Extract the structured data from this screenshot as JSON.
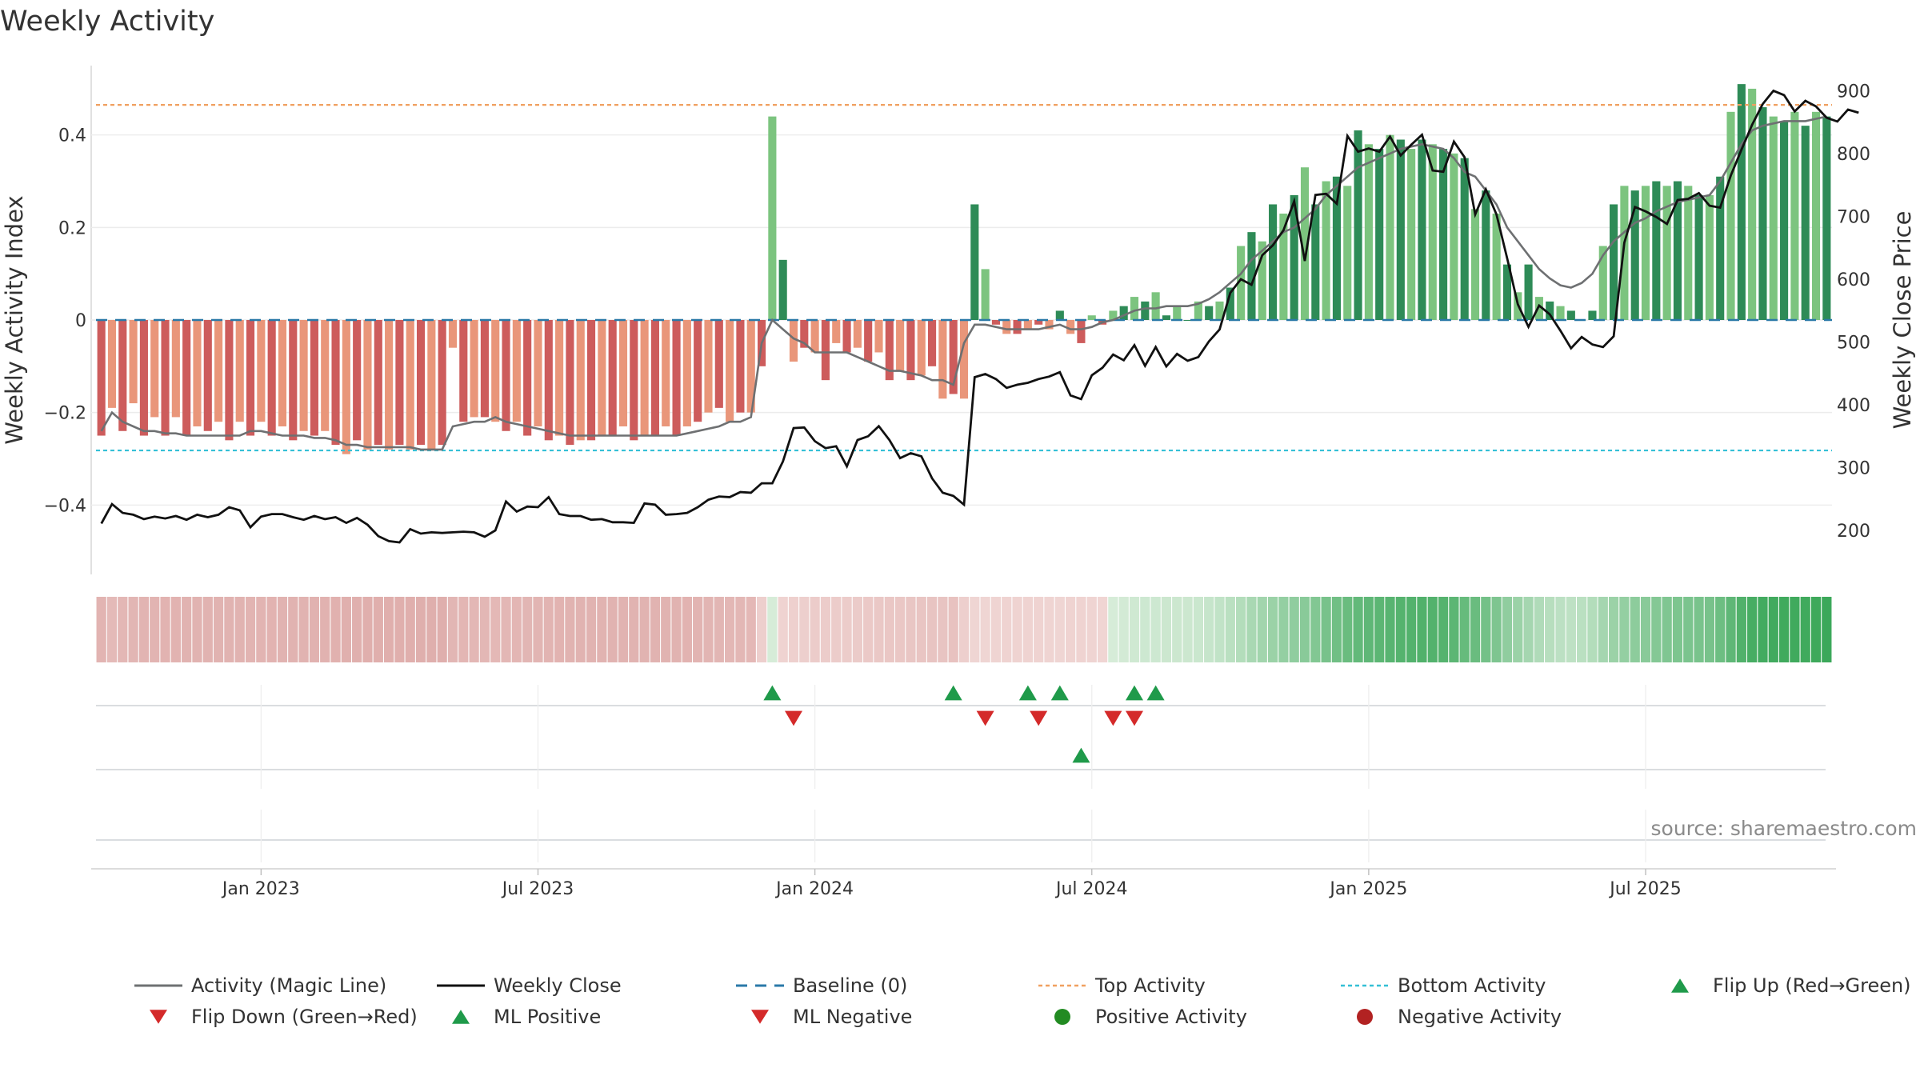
{
  "chart_data": {
    "type": "bar",
    "title": "Weekly Activity",
    "ylabel_left": "Weekly Activity Index",
    "ylabel_right": "Weekly Close Price",
    "source": "source: sharemaestro.com",
    "y_left": {
      "min": -0.55,
      "max": 0.55,
      "ticks": [
        0.4,
        0.2,
        0,
        -0.2,
        -0.4
      ],
      "tick_labels": [
        "0.4",
        "0.2",
        "0",
        "−0.2",
        "−0.4"
      ]
    },
    "y_right": {
      "min": 130,
      "max": 940,
      "ticks": [
        900,
        800,
        700,
        600,
        500,
        400,
        300,
        200
      ],
      "tick_labels": [
        "900",
        "800",
        "700",
        "600",
        "500",
        "400",
        "300",
        "200"
      ]
    },
    "x_ticks": [
      {
        "label": "Jan 2023",
        "week": 15
      },
      {
        "label": "Jul 2023",
        "week": 41
      },
      {
        "label": "Jan 2024",
        "week": 67
      },
      {
        "label": "Jul 2024",
        "week": 93
      },
      {
        "label": "Jan 2025",
        "week": 119
      },
      {
        "label": "Jul 2025",
        "week": 145
      }
    ],
    "top_activity": 0.465,
    "bottom_activity": -0.282,
    "activity": [
      -0.25,
      -0.19,
      -0.24,
      -0.18,
      -0.25,
      -0.21,
      -0.25,
      -0.21,
      -0.25,
      -0.23,
      -0.24,
      -0.22,
      -0.26,
      -0.22,
      -0.25,
      -0.22,
      -0.25,
      -0.23,
      -0.26,
      -0.24,
      -0.25,
      -0.24,
      -0.27,
      -0.29,
      -0.26,
      -0.28,
      -0.27,
      -0.28,
      -0.27,
      -0.28,
      -0.27,
      -0.28,
      -0.27,
      -0.06,
      -0.22,
      -0.21,
      -0.21,
      -0.22,
      -0.24,
      -0.22,
      -0.25,
      -0.23,
      -0.26,
      -0.25,
      -0.27,
      -0.26,
      -0.26,
      -0.25,
      -0.25,
      -0.23,
      -0.26,
      -0.25,
      -0.25,
      -0.23,
      -0.25,
      -0.23,
      -0.22,
      -0.2,
      -0.19,
      -0.22,
      -0.2,
      -0.2,
      -0.1,
      0.44,
      0.13,
      -0.09,
      -0.06,
      -0.07,
      -0.13,
      -0.05,
      -0.07,
      -0.06,
      -0.09,
      -0.07,
      -0.13,
      -0.11,
      -0.13,
      -0.12,
      -0.1,
      -0.17,
      -0.16,
      -0.17,
      0.25,
      0.11,
      -0.01,
      -0.03,
      -0.03,
      -0.02,
      -0.01,
      -0.02,
      0.02,
      -0.03,
      -0.05,
      0.01,
      -0.01,
      0.02,
      0.03,
      0.05,
      0.04,
      0.06,
      0.01,
      0.03,
      0.0,
      0.04,
      0.03,
      0.04,
      0.07,
      0.16,
      0.19,
      0.17,
      0.25,
      0.23,
      0.27,
      0.33,
      0.25,
      0.3,
      0.31,
      0.29,
      0.41,
      0.38,
      0.37,
      0.4,
      0.39,
      0.37,
      0.39,
      0.38,
      0.37,
      0.36,
      0.35,
      0.24,
      0.28,
      0.23,
      0.12,
      0.06,
      0.12,
      0.05,
      0.04,
      0.03,
      0.02,
      0.0,
      0.02,
      0.16,
      0.25,
      0.29,
      0.28,
      0.29,
      0.3,
      0.29,
      0.3,
      0.29,
      0.27,
      0.27,
      0.31,
      0.45,
      0.51,
      0.5,
      0.46,
      0.44,
      0.43,
      0.45,
      0.42,
      0.45,
      0.44
    ],
    "magic_line": [
      -0.24,
      -0.2,
      -0.22,
      -0.23,
      -0.24,
      -0.24,
      -0.245,
      -0.245,
      -0.25,
      -0.25,
      -0.25,
      -0.25,
      -0.25,
      -0.25,
      -0.24,
      -0.24,
      -0.245,
      -0.25,
      -0.25,
      -0.25,
      -0.255,
      -0.255,
      -0.26,
      -0.27,
      -0.27,
      -0.275,
      -0.275,
      -0.275,
      -0.275,
      -0.275,
      -0.28,
      -0.28,
      -0.28,
      -0.23,
      -0.225,
      -0.22,
      -0.22,
      -0.21,
      -0.22,
      -0.225,
      -0.23,
      -0.235,
      -0.24,
      -0.245,
      -0.25,
      -0.25,
      -0.25,
      -0.25,
      -0.25,
      -0.25,
      -0.25,
      -0.25,
      -0.25,
      -0.25,
      -0.25,
      -0.245,
      -0.24,
      -0.235,
      -0.23,
      -0.22,
      -0.22,
      -0.21,
      -0.05,
      0.0,
      -0.02,
      -0.04,
      -0.05,
      -0.07,
      -0.07,
      -0.07,
      -0.07,
      -0.08,
      -0.09,
      -0.1,
      -0.11,
      -0.11,
      -0.115,
      -0.12,
      -0.13,
      -0.13,
      -0.14,
      -0.05,
      -0.01,
      -0.01,
      -0.015,
      -0.02,
      -0.02,
      -0.02,
      -0.02,
      -0.015,
      -0.01,
      -0.02,
      -0.02,
      -0.015,
      -0.005,
      0.0,
      0.01,
      0.02,
      0.025,
      0.025,
      0.03,
      0.03,
      0.03,
      0.035,
      0.045,
      0.06,
      0.08,
      0.1,
      0.13,
      0.15,
      0.17,
      0.19,
      0.2,
      0.22,
      0.24,
      0.27,
      0.29,
      0.31,
      0.33,
      0.34,
      0.35,
      0.36,
      0.37,
      0.375,
      0.38,
      0.375,
      0.37,
      0.35,
      0.32,
      0.31,
      0.28,
      0.25,
      0.2,
      0.17,
      0.14,
      0.11,
      0.09,
      0.075,
      0.07,
      0.08,
      0.1,
      0.14,
      0.17,
      0.19,
      0.21,
      0.22,
      0.235,
      0.245,
      0.255,
      0.26,
      0.265,
      0.27,
      0.3,
      0.34,
      0.38,
      0.41,
      0.42,
      0.425,
      0.43,
      0.43,
      0.43,
      0.435,
      0.44
    ],
    "weekly_close": [
      211,
      242,
      228,
      225,
      218,
      222,
      219,
      223,
      217,
      225,
      221,
      225,
      237,
      232,
      205,
      222,
      226,
      226,
      221,
      217,
      223,
      218,
      221,
      212,
      220,
      209,
      191,
      183,
      181,
      202,
      195,
      197,
      196,
      197,
      198,
      197,
      190,
      200,
      246,
      230,
      238,
      237,
      253,
      226,
      223,
      223,
      217,
      218,
      213,
      213,
      212,
      243,
      241,
      225,
      226,
      228,
      237,
      249,
      254,
      253,
      261,
      260,
      275,
      275,
      310,
      363,
      364,
      342,
      331,
      334,
      302,
      344,
      350,
      366,
      344,
      315,
      323,
      318,
      283,
      260,
      255,
      241,
      444,
      449,
      441,
      427,
      432,
      435,
      441,
      445,
      452,
      415,
      409,
      447,
      459,
      480,
      471,
      495,
      462,
      492,
      461,
      481,
      470,
      476,
      501,
      520,
      578,
      600,
      591,
      638,
      654,
      678,
      724,
      629,
      734,
      736,
      720,
      828,
      803,
      808,
      803,
      827,
      797,
      814,
      830,
      773,
      771,
      819,
      794,
      703,
      743,
      703,
      633,
      560,
      524,
      558,
      544,
      518,
      490,
      508,
      496,
      492,
      509,
      658,
      715,
      708,
      699,
      688,
      726,
      728,
      737,
      717,
      714,
      765,
      806,
      846,
      879,
      900,
      893,
      867,
      884,
      875,
      857,
      851,
      870,
      865
    ],
    "colors": {
      "pos_dark": "#2e8b57",
      "pos_light": "#7cc47f",
      "neg_dark": "#cd5c5c",
      "neg_light": "#e9967a",
      "magic_line": "#6e7072",
      "weekly_close": "#111111",
      "baseline": "#2a79a8",
      "top_activity": "#f0a060",
      "bottom_activity": "#35c0d6",
      "marker_up": "#1f9a4a",
      "marker_down": "#d42a2a",
      "positive_dot": "#228b22",
      "negative_dot": "#b22222"
    },
    "flip_up_weeks": [
      63,
      80,
      87,
      90,
      97,
      99
    ],
    "flip_down_weeks": [
      65,
      83,
      88,
      95,
      97
    ],
    "ml_positive_weeks": [
      92
    ],
    "ml_negative_weeks": [],
    "legend": [
      "Activity (Magic Line)",
      "Weekly Close",
      "Baseline (0)",
      "Top Activity",
      "Bottom Activity",
      "Flip Up (Red→Green)",
      "Flip Down (Green→Red)",
      "ML Positive",
      "ML Negative",
      "Positive Activity",
      "Negative Activity"
    ]
  }
}
